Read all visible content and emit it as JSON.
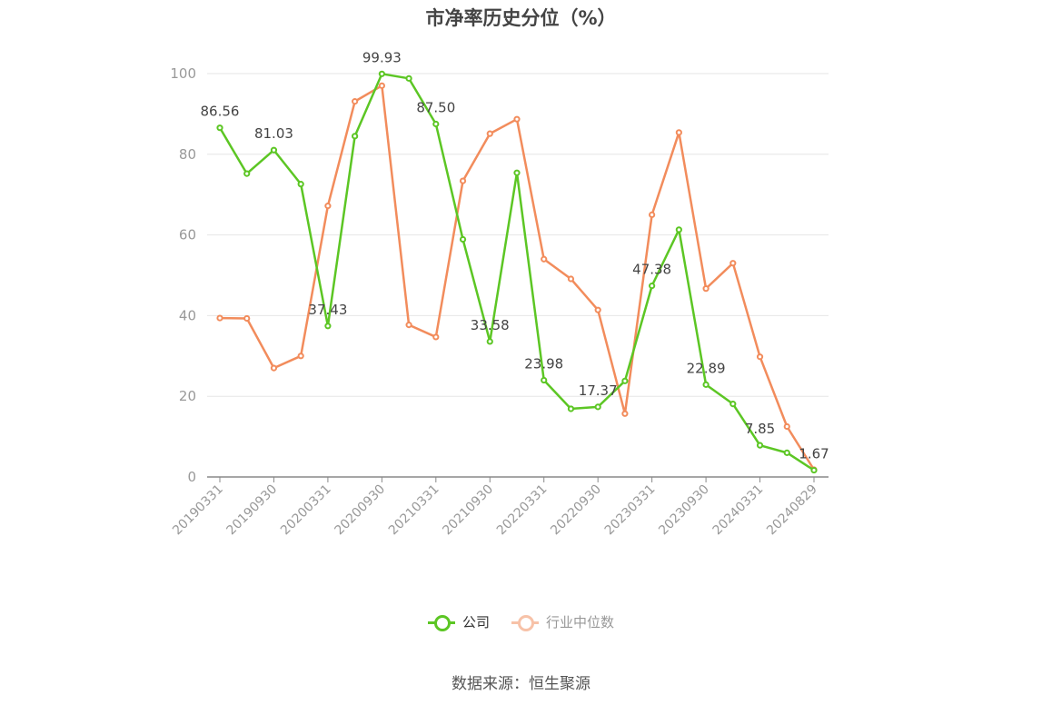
{
  "title": "市净率历史分位（%）",
  "source": "数据来源：恒生聚源",
  "legend": {
    "company": "公司",
    "industry": "行业中位数"
  },
  "colors": {
    "company": "#5cc624",
    "industry": "#f28c5c",
    "grid": "#e6e6e6",
    "axis": "#999999",
    "label": "#444444"
  },
  "chart_data": {
    "type": "line",
    "title": "市净率历史分位（%）",
    "ylim": [
      0,
      100
    ],
    "yticks": [
      0,
      20,
      40,
      60,
      80,
      100
    ],
    "x": [
      "20190331",
      "20190630",
      "20190930",
      "20191231",
      "20200331",
      "20200630",
      "20200930",
      "20201231",
      "20210331",
      "20210630",
      "20210930",
      "20211231",
      "20220331",
      "20220630",
      "20220930",
      "20221231",
      "20230331",
      "20230630",
      "20230930",
      "20231231",
      "20240331",
      "20240630",
      "20240829"
    ],
    "xtick_labels": [
      "20190331",
      "20190930",
      "20200331",
      "20200930",
      "20210331",
      "20210930",
      "20220331",
      "20220930",
      "20230331",
      "20230930",
      "20240331",
      "20240829"
    ],
    "series": [
      {
        "name": "公司",
        "values": [
          86.56,
          75.2,
          81.03,
          72.6,
          37.43,
          84.5,
          99.93,
          98.8,
          87.5,
          58.9,
          33.58,
          75.4,
          23.98,
          16.9,
          17.37,
          23.8,
          47.38,
          61.3,
          22.89,
          18.1,
          7.85,
          6.0,
          1.67
        ]
      },
      {
        "name": "行业中位数",
        "values": [
          39.4,
          39.3,
          27.0,
          30.0,
          67.2,
          93.1,
          97.0,
          37.7,
          34.7,
          73.4,
          85.1,
          88.7,
          54.0,
          49.1,
          41.4,
          15.7,
          65.0,
          85.4,
          46.7,
          53.0,
          29.8,
          12.5,
          1.8
        ]
      }
    ],
    "labels": [
      {
        "index": 0,
        "text": "86.56"
      },
      {
        "index": 2,
        "text": "81.03"
      },
      {
        "index": 4,
        "text": "37.43"
      },
      {
        "index": 6,
        "text": "99.93"
      },
      {
        "index": 8,
        "text": "87.50"
      },
      {
        "index": 10,
        "text": "33.58"
      },
      {
        "index": 12,
        "text": "23.98"
      },
      {
        "index": 14,
        "text": "17.37"
      },
      {
        "index": 16,
        "text": "47.38"
      },
      {
        "index": 18,
        "text": "22.89"
      },
      {
        "index": 20,
        "text": "7.85"
      },
      {
        "index": 22,
        "text": "1.67"
      }
    ],
    "grid": true,
    "legend_position": "bottom"
  }
}
